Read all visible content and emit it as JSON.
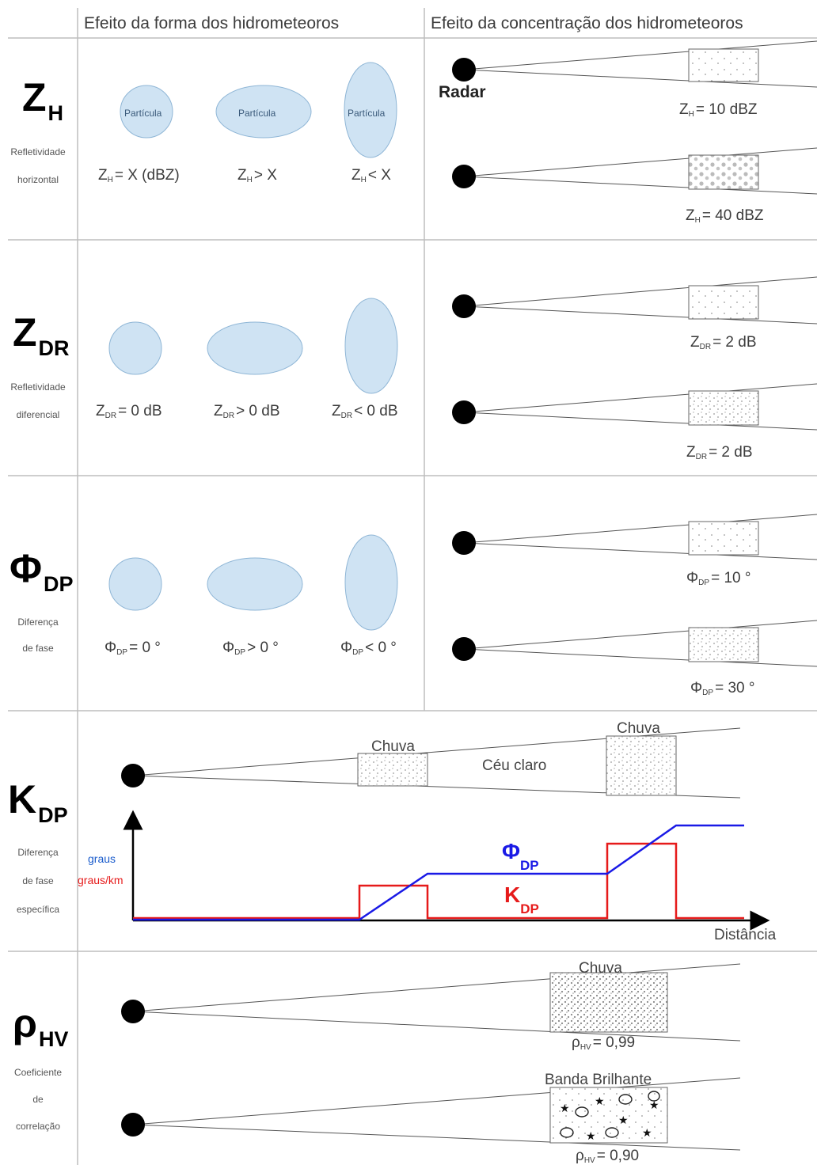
{
  "headers": {
    "shape": "Efeito da forma dos hidrometeoros",
    "concentration": "Efeito da concentração dos hidrometeoros"
  },
  "particle_label": "Partícula",
  "radar_label": "Radar",
  "rows": {
    "zh": {
      "symbol": "Z",
      "sub": "H",
      "desc_lines": [
        "Refletividade",
        "horizontal"
      ],
      "shape_labels": [
        {
          "sym": "Z",
          "sub": "H",
          "rest": "= X (dBZ)"
        },
        {
          "sym": "Z",
          "sub": "H",
          "rest": "> X"
        },
        {
          "sym": "Z",
          "sub": "H",
          "rest": "< X"
        }
      ],
      "conc_labels": [
        {
          "sym": "Z",
          "sub": "H",
          "rest": "= 10 dBZ"
        },
        {
          "sym": "Z",
          "sub": "H",
          "rest": "= 40 dBZ"
        }
      ]
    },
    "zdr": {
      "symbol": "Z",
      "sub": "DR",
      "desc_lines": [
        "Refletividade",
        "diferencial"
      ],
      "shape_labels": [
        {
          "sym": "Z",
          "sub": "DR",
          "rest": "= 0 dB"
        },
        {
          "sym": "Z",
          "sub": "DR",
          "rest": "> 0 dB"
        },
        {
          "sym": "Z",
          "sub": "DR",
          "rest": "< 0 dB"
        }
      ],
      "conc_labels": [
        {
          "sym": "Z",
          "sub": "DR",
          "rest": "= 2 dB"
        },
        {
          "sym": "Z",
          "sub": "DR",
          "rest": "= 2 dB"
        }
      ]
    },
    "phidp": {
      "symbol": "Φ",
      "sub": "DP",
      "desc_lines": [
        "Diferença",
        "de fase"
      ],
      "shape_labels": [
        {
          "sym": "Φ",
          "sub": "DP",
          "rest": "= 0 °"
        },
        {
          "sym": "Φ",
          "sub": "DP",
          "rest": "> 0 °"
        },
        {
          "sym": "Φ",
          "sub": "DP",
          "rest": "< 0 °"
        }
      ],
      "conc_labels": [
        {
          "sym": "Φ",
          "sub": "DP",
          "rest": "= 10 °"
        },
        {
          "sym": "Φ",
          "sub": "DP",
          "rest": "= 30 °"
        }
      ]
    },
    "kdp": {
      "symbol": "K",
      "sub": "DP",
      "desc_lines": [
        "Diferença",
        "de fase",
        "específica"
      ],
      "rain_label_1": "Chuva",
      "clear_label": "Céu claro",
      "rain_label_2": "Chuva",
      "axis_y_units_phi": "graus",
      "axis_y_units_k": "graus/km",
      "axis_x_label": "Distância",
      "phi_label": {
        "sym": "Φ",
        "sub": "DP"
      },
      "k_label": {
        "sym": "K",
        "sub": "DP"
      },
      "colors": {
        "phi": "#1a1ae6",
        "k": "#e61a1a"
      }
    },
    "rhohv": {
      "symbol": "ρ",
      "sub": "HV",
      "desc_lines": [
        "Coeficiente",
        "de",
        "correlação"
      ],
      "rain_label": "Chuva",
      "bright_band_label": "Banda Brilhante",
      "conc_labels": [
        {
          "sym": "ρ",
          "sub": "HV",
          "rest": "= 0,99"
        },
        {
          "sym": "ρ",
          "sub": "HV",
          "rest": "= 0,90"
        }
      ]
    }
  }
}
